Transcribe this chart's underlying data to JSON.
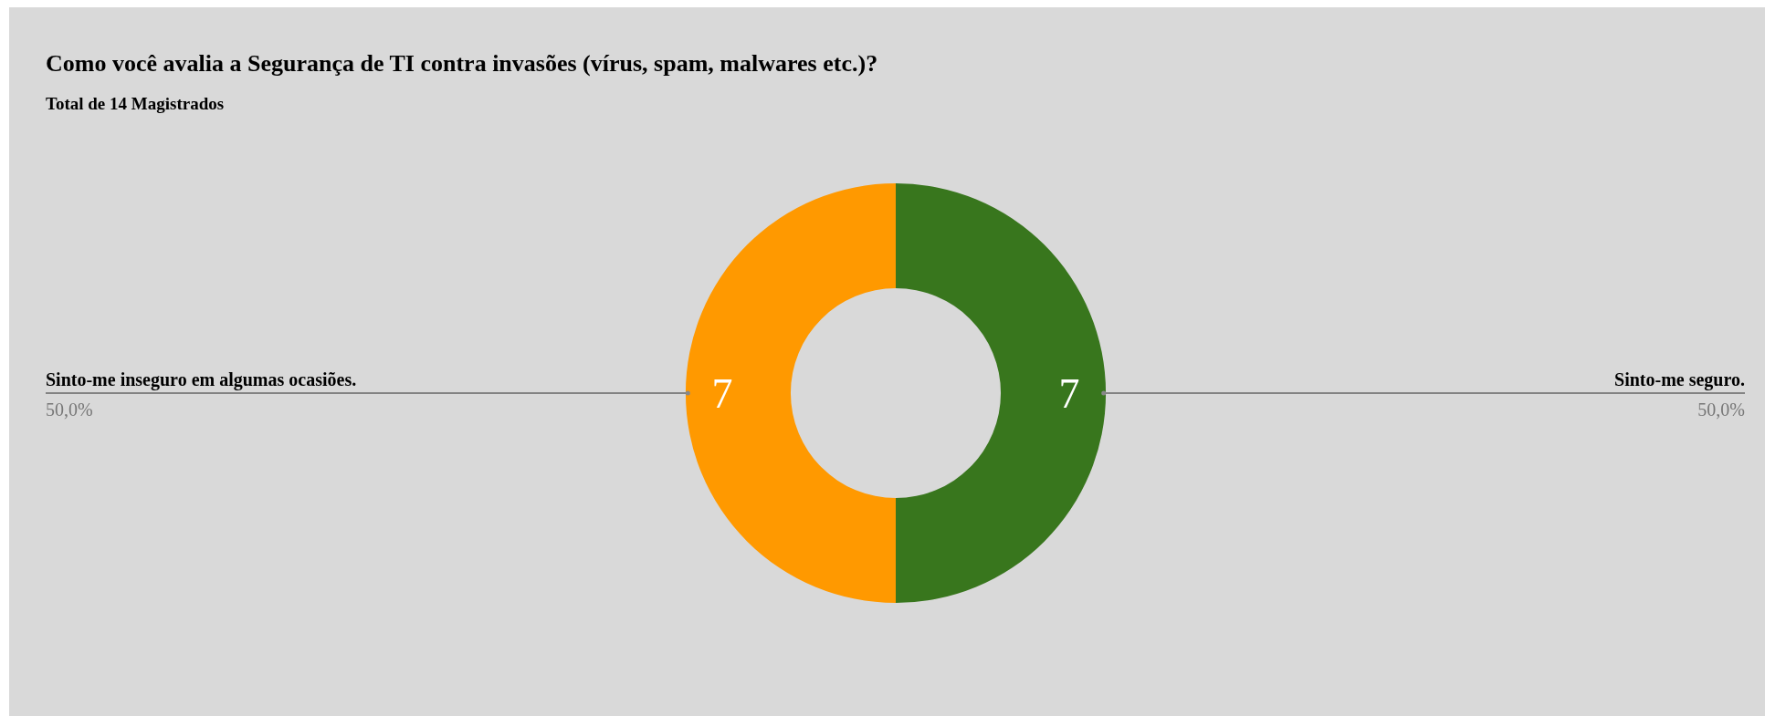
{
  "chart_data": {
    "type": "donut",
    "title": "Como você avalia a Segurança de TI contra invasões (vírus, spam, malwares etc.)?",
    "subtitle": "Total de 14 Magistrados",
    "categories": [
      "Sinto-me seguro.",
      "Sinto-me inseguro em algumas ocasiões."
    ],
    "values": [
      7,
      7
    ],
    "colors": [
      "#38761d",
      "#ff9900"
    ],
    "data_labels": true,
    "annotations": [
      "50,0%",
      "50,0%"
    ]
  }
}
